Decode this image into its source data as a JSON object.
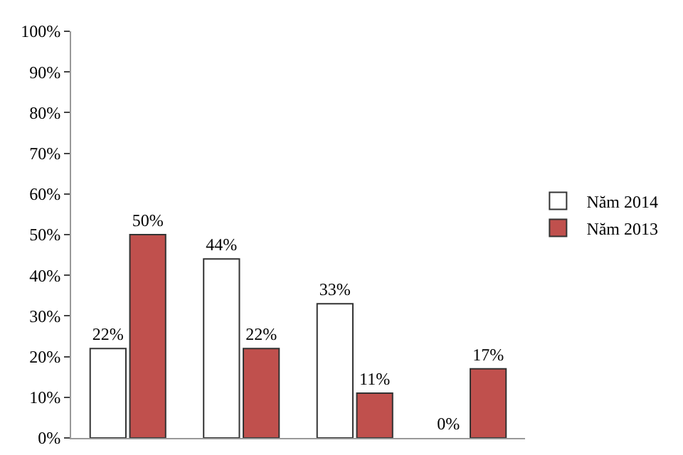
{
  "chart_data": {
    "type": "bar",
    "categories": [
      null,
      null,
      null,
      null
    ],
    "series": [
      {
        "name": "Năm 2014",
        "color": "#ffffff",
        "values": [
          22,
          44,
          33,
          0
        ]
      },
      {
        "name": "Năm 2013",
        "color": "#c0504d",
        "values": [
          50,
          22,
          11,
          17
        ]
      }
    ],
    "ylim": [
      0,
      100
    ],
    "yticks": [
      {
        "value": 0,
        "label": "0%"
      },
      {
        "value": 10,
        "label": "10%"
      },
      {
        "value": 20,
        "label": "20%"
      },
      {
        "value": 30,
        "label": "30%"
      },
      {
        "value": 40,
        "label": "40%"
      },
      {
        "value": 50,
        "label": "50%"
      },
      {
        "value": 60,
        "label": "60%"
      },
      {
        "value": 70,
        "label": "70%"
      },
      {
        "value": 80,
        "label": "80%"
      },
      {
        "value": 90,
        "label": "90%"
      },
      {
        "value": 100,
        "label": "100%"
      }
    ],
    "value_labels": [
      [
        "22%",
        "44%",
        "33%",
        "0%"
      ],
      [
        "50%",
        "22%",
        "11%",
        "17%"
      ]
    ],
    "grid": false,
    "legend": "right"
  }
}
